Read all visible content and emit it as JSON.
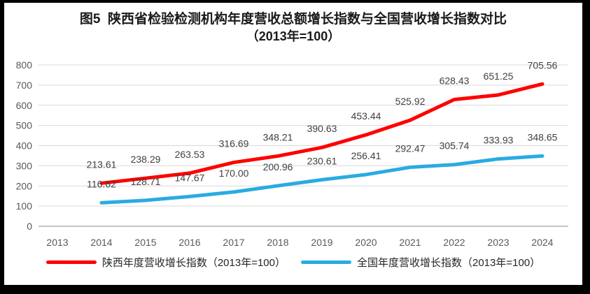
{
  "title": {
    "line1": "图5  陕西省检验检测机构年度营收总额增长指数与全国营收增长指数对比",
    "line2": "（2013年=100）"
  },
  "colors": {
    "shaanxi": "#ff0000",
    "national": "#29abe2",
    "gridline": "#d9d9d9",
    "axis_text": "#595959",
    "data_label": "#3f3f3f",
    "frame_border": "#000000"
  },
  "chart_data": {
    "type": "line",
    "categories": [
      "2013",
      "2014",
      "2015",
      "2016",
      "2017",
      "2018",
      "2019",
      "2020",
      "2021",
      "2022",
      "2023",
      "2024"
    ],
    "series": [
      {
        "key": "shaanxi",
        "name": "陕西年度营收增长指数（2013年=100）",
        "color": "#ff0000",
        "values": [
          null,
          213.61,
          238.29,
          263.53,
          316.69,
          348.21,
          390.63,
          453.44,
          525.92,
          628.43,
          651.25,
          705.56
        ],
        "labels": [
          null,
          "213.61",
          "238.29",
          "263.53",
          "316.69",
          "348.21",
          "390.63",
          "453.44",
          "525.92",
          "628.43",
          "651.25",
          "705.56"
        ]
      },
      {
        "key": "national",
        "name": "全国年度营收增长指数（2013年=100）",
        "color": "#29abe2",
        "values": [
          null,
          116.62,
          128.71,
          147.67,
          170.0,
          200.96,
          230.61,
          256.41,
          292.47,
          305.74,
          333.93,
          348.65
        ],
        "labels": [
          null,
          "116.62",
          "128.71",
          "147.67",
          "170.00",
          "200.96",
          "230.61",
          "256.41",
          "292.47",
          "305.74",
          "333.93",
          "348.65"
        ]
      }
    ],
    "ylim": [
      0,
      800
    ],
    "ytick_step": 100,
    "yticks": [
      "0",
      "100",
      "200",
      "300",
      "400",
      "500",
      "600",
      "700",
      "800"
    ],
    "grid": true,
    "legend_position": "bottom",
    "xlabel": "",
    "ylabel": ""
  }
}
